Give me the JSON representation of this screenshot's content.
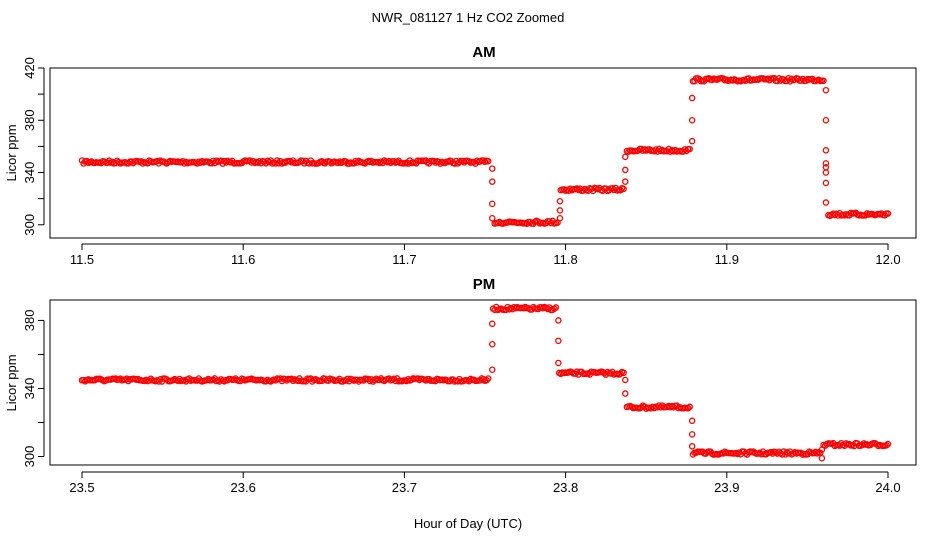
{
  "chart_data": {
    "type": "scatter",
    "title": "NWR_081127  1 Hz CO2 Zoomed",
    "xlabel": "Hour of Day (UTC)",
    "marker_color": "#ff0000",
    "panels": [
      {
        "name": "am",
        "title": "AM",
        "ylabel": "Licor ppm",
        "xlim": [
          11.5,
          12.0
        ],
        "ylim": [
          296,
          420
        ],
        "xticks": [
          11.5,
          11.6,
          11.7,
          11.8,
          11.9,
          12.0
        ],
        "xtick_labels": [
          "11.5",
          "11.6",
          "11.7",
          "11.8",
          "11.9",
          "12.0"
        ],
        "yticks": [
          300,
          340,
          380,
          420
        ],
        "ytick_labels": [
          "300",
          "340",
          "380",
          "420"
        ],
        "yticks_minor": [
          320,
          360,
          400
        ],
        "segments": [
          {
            "x0": 11.5,
            "x1": 11.752,
            "y": 348
          },
          {
            "x0": 11.756,
            "x1": 11.795,
            "y": 302
          },
          {
            "x0": 11.797,
            "x1": 11.836,
            "y": 327
          },
          {
            "x0": 11.838,
            "x1": 11.877,
            "y": 357
          },
          {
            "x0": 11.879,
            "x1": 11.96,
            "y": 411
          },
          {
            "x0": 11.963,
            "x1": 12.0,
            "y": 308
          }
        ],
        "transitions": [
          {
            "x": 11.7545,
            "values": [
              343,
              333,
              316,
              305
            ]
          },
          {
            "x": 11.7965,
            "values": [
              305,
              311,
              318
            ]
          },
          {
            "x": 11.837,
            "values": [
              333,
              342,
              352
            ]
          },
          {
            "x": 11.8785,
            "values": [
              364,
              380,
              397
            ]
          },
          {
            "x": 11.9615,
            "values": [
              403,
              380,
              357,
              347,
              344,
              340,
              332,
              317
            ]
          }
        ]
      },
      {
        "name": "pm",
        "title": "PM",
        "ylabel": "Licor ppm",
        "xlim": [
          23.5,
          24.0
        ],
        "ylim": [
          295,
          392
        ],
        "xticks": [
          23.5,
          23.6,
          23.7,
          23.8,
          23.9,
          24.0
        ],
        "xtick_labels": [
          "23.5",
          "23.6",
          "23.7",
          "23.8",
          "23.9",
          "24.0"
        ],
        "yticks": [
          300,
          340,
          380
        ],
        "ytick_labels": [
          "300",
          "340",
          "380"
        ],
        "yticks_minor": [
          320,
          360
        ],
        "segments": [
          {
            "x0": 23.5,
            "x1": 23.752,
            "y": 345
          },
          {
            "x0": 23.755,
            "x1": 23.794,
            "y": 387
          },
          {
            "x0": 23.796,
            "x1": 23.836,
            "y": 349
          },
          {
            "x0": 23.838,
            "x1": 23.877,
            "y": 329
          },
          {
            "x0": 23.879,
            "x1": 23.958,
            "y": 302
          },
          {
            "x0": 23.96,
            "x1": 24.0,
            "y": 307
          }
        ],
        "transitions": [
          {
            "x": 23.7545,
            "values": [
              351,
              366,
              378
            ]
          },
          {
            "x": 23.7955,
            "values": [
              380,
              368,
              355
            ]
          },
          {
            "x": 23.837,
            "values": [
              345,
              337
            ]
          },
          {
            "x": 23.8785,
            "values": [
              321,
              313,
              306
            ]
          },
          {
            "x": 23.959,
            "values": [
              299,
              304
            ]
          }
        ]
      }
    ]
  }
}
